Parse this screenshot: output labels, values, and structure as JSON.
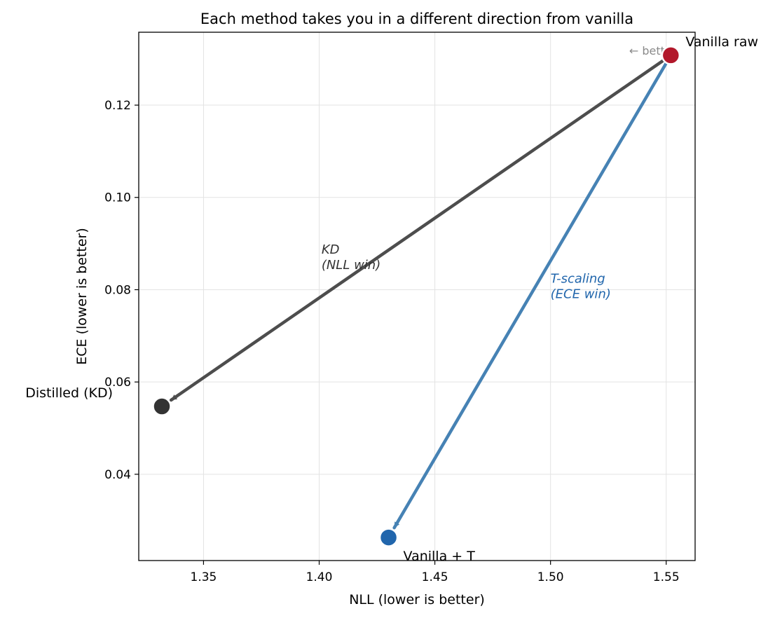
{
  "chart_data": {
    "type": "scatter",
    "title": "Each method takes you in a different direction from vanilla",
    "xlabel": "NLL (lower is better)",
    "ylabel": "ECE (lower is better)",
    "xlim": [
      1.322,
      1.5625
    ],
    "ylim": [
      0.0213,
      0.1358
    ],
    "xticks": [
      1.35,
      1.4,
      1.45,
      1.5,
      1.55
    ],
    "xtick_labels": [
      "1.35",
      "1.40",
      "1.45",
      "1.50",
      "1.55"
    ],
    "yticks": [
      0.04,
      0.06,
      0.08,
      0.1,
      0.12
    ],
    "ytick_labels": [
      "0.04",
      "0.06",
      "0.08",
      "0.10",
      "0.12"
    ],
    "grid": true,
    "points": [
      {
        "label": "Vanilla raw",
        "x": 1.552,
        "y": 0.1308,
        "color": "#b2182b"
      },
      {
        "label": "Distilled (KD)",
        "x": 1.332,
        "y": 0.0547,
        "color": "#333333"
      },
      {
        "label": "Vanilla + T",
        "x": 1.43,
        "y": 0.0263,
        "color": "#2166ac"
      }
    ],
    "arrows": [
      {
        "from": "Vanilla raw",
        "to": "Distilled (KD)",
        "color": "#4d4d4d",
        "label_lines": [
          "KD",
          "(NLL win)"
        ],
        "label_color": "#333333",
        "label_x": 1.401,
        "label_y": 0.0878
      },
      {
        "from": "Vanilla raw",
        "to": "Vanilla + T",
        "color": "#4682b4",
        "label_lines": [
          "T-scaling",
          "(ECE win)"
        ],
        "label_color": "#2166ac",
        "label_x": 1.5,
        "label_y": 0.0815
      }
    ],
    "annotation": {
      "text": "← better",
      "x": 1.534,
      "y": 0.1317
    }
  }
}
